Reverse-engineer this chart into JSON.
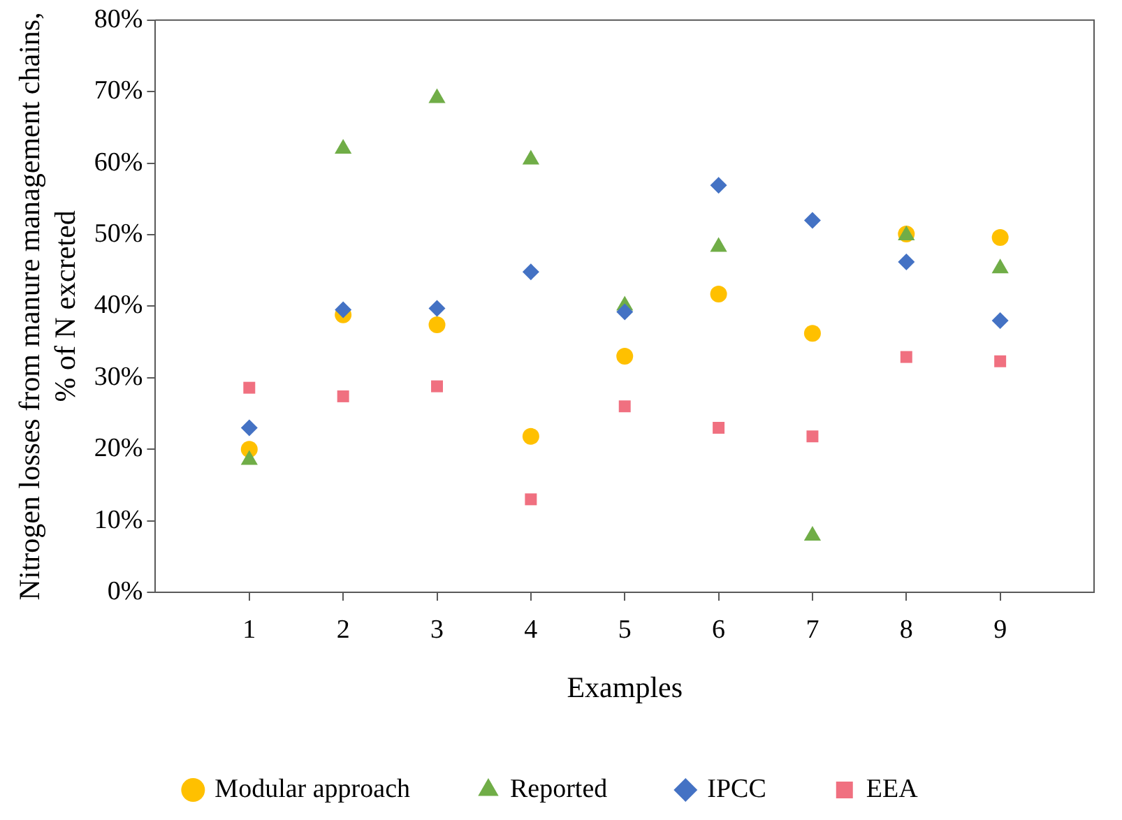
{
  "chart_data": {
    "type": "scatter",
    "xlabel": "Examples",
    "ylabel": "Nitrogen losses from manure management chains, % of N excreted",
    "x": [
      1,
      2,
      3,
      4,
      5,
      6,
      7,
      8,
      9
    ],
    "xlim": [
      0,
      10
    ],
    "xticks": [
      1,
      2,
      3,
      4,
      5,
      6,
      7,
      8,
      9
    ],
    "ylim": [
      0,
      80
    ],
    "yticks": [
      {
        "value": 0,
        "label": "0%"
      },
      {
        "value": 10,
        "label": "10%"
      },
      {
        "value": 20,
        "label": "20%"
      },
      {
        "value": 30,
        "label": "30%"
      },
      {
        "value": 40,
        "label": "40%"
      },
      {
        "value": 50,
        "label": "50%"
      },
      {
        "value": 60,
        "label": "60%"
      },
      {
        "value": 70,
        "label": "70%"
      },
      {
        "value": 80,
        "label": "80%"
      }
    ],
    "grid": false,
    "legend": "bottom",
    "series": [
      {
        "name": "Modular approach",
        "color": "#ffc000",
        "marker": "circle",
        "values": [
          20.0,
          38.8,
          37.4,
          21.8,
          33.0,
          41.7,
          36.2,
          50.1,
          49.6
        ]
      },
      {
        "name": "Reported",
        "color": "#70ad47",
        "marker": "triangle",
        "values": [
          18.5,
          62.0,
          69.1,
          60.5,
          40.1,
          48.3,
          7.9,
          49.9,
          45.3
        ]
      },
      {
        "name": "IPCC",
        "color": "#4472c4",
        "marker": "diamond",
        "values": [
          23.0,
          39.5,
          39.7,
          44.8,
          39.2,
          56.9,
          52.0,
          46.2,
          38.0
        ]
      },
      {
        "name": "EEA",
        "color": "#f07080",
        "marker": "square",
        "values": [
          28.6,
          27.4,
          28.8,
          13.0,
          26.0,
          23.0,
          21.8,
          32.9,
          32.3
        ]
      }
    ]
  }
}
